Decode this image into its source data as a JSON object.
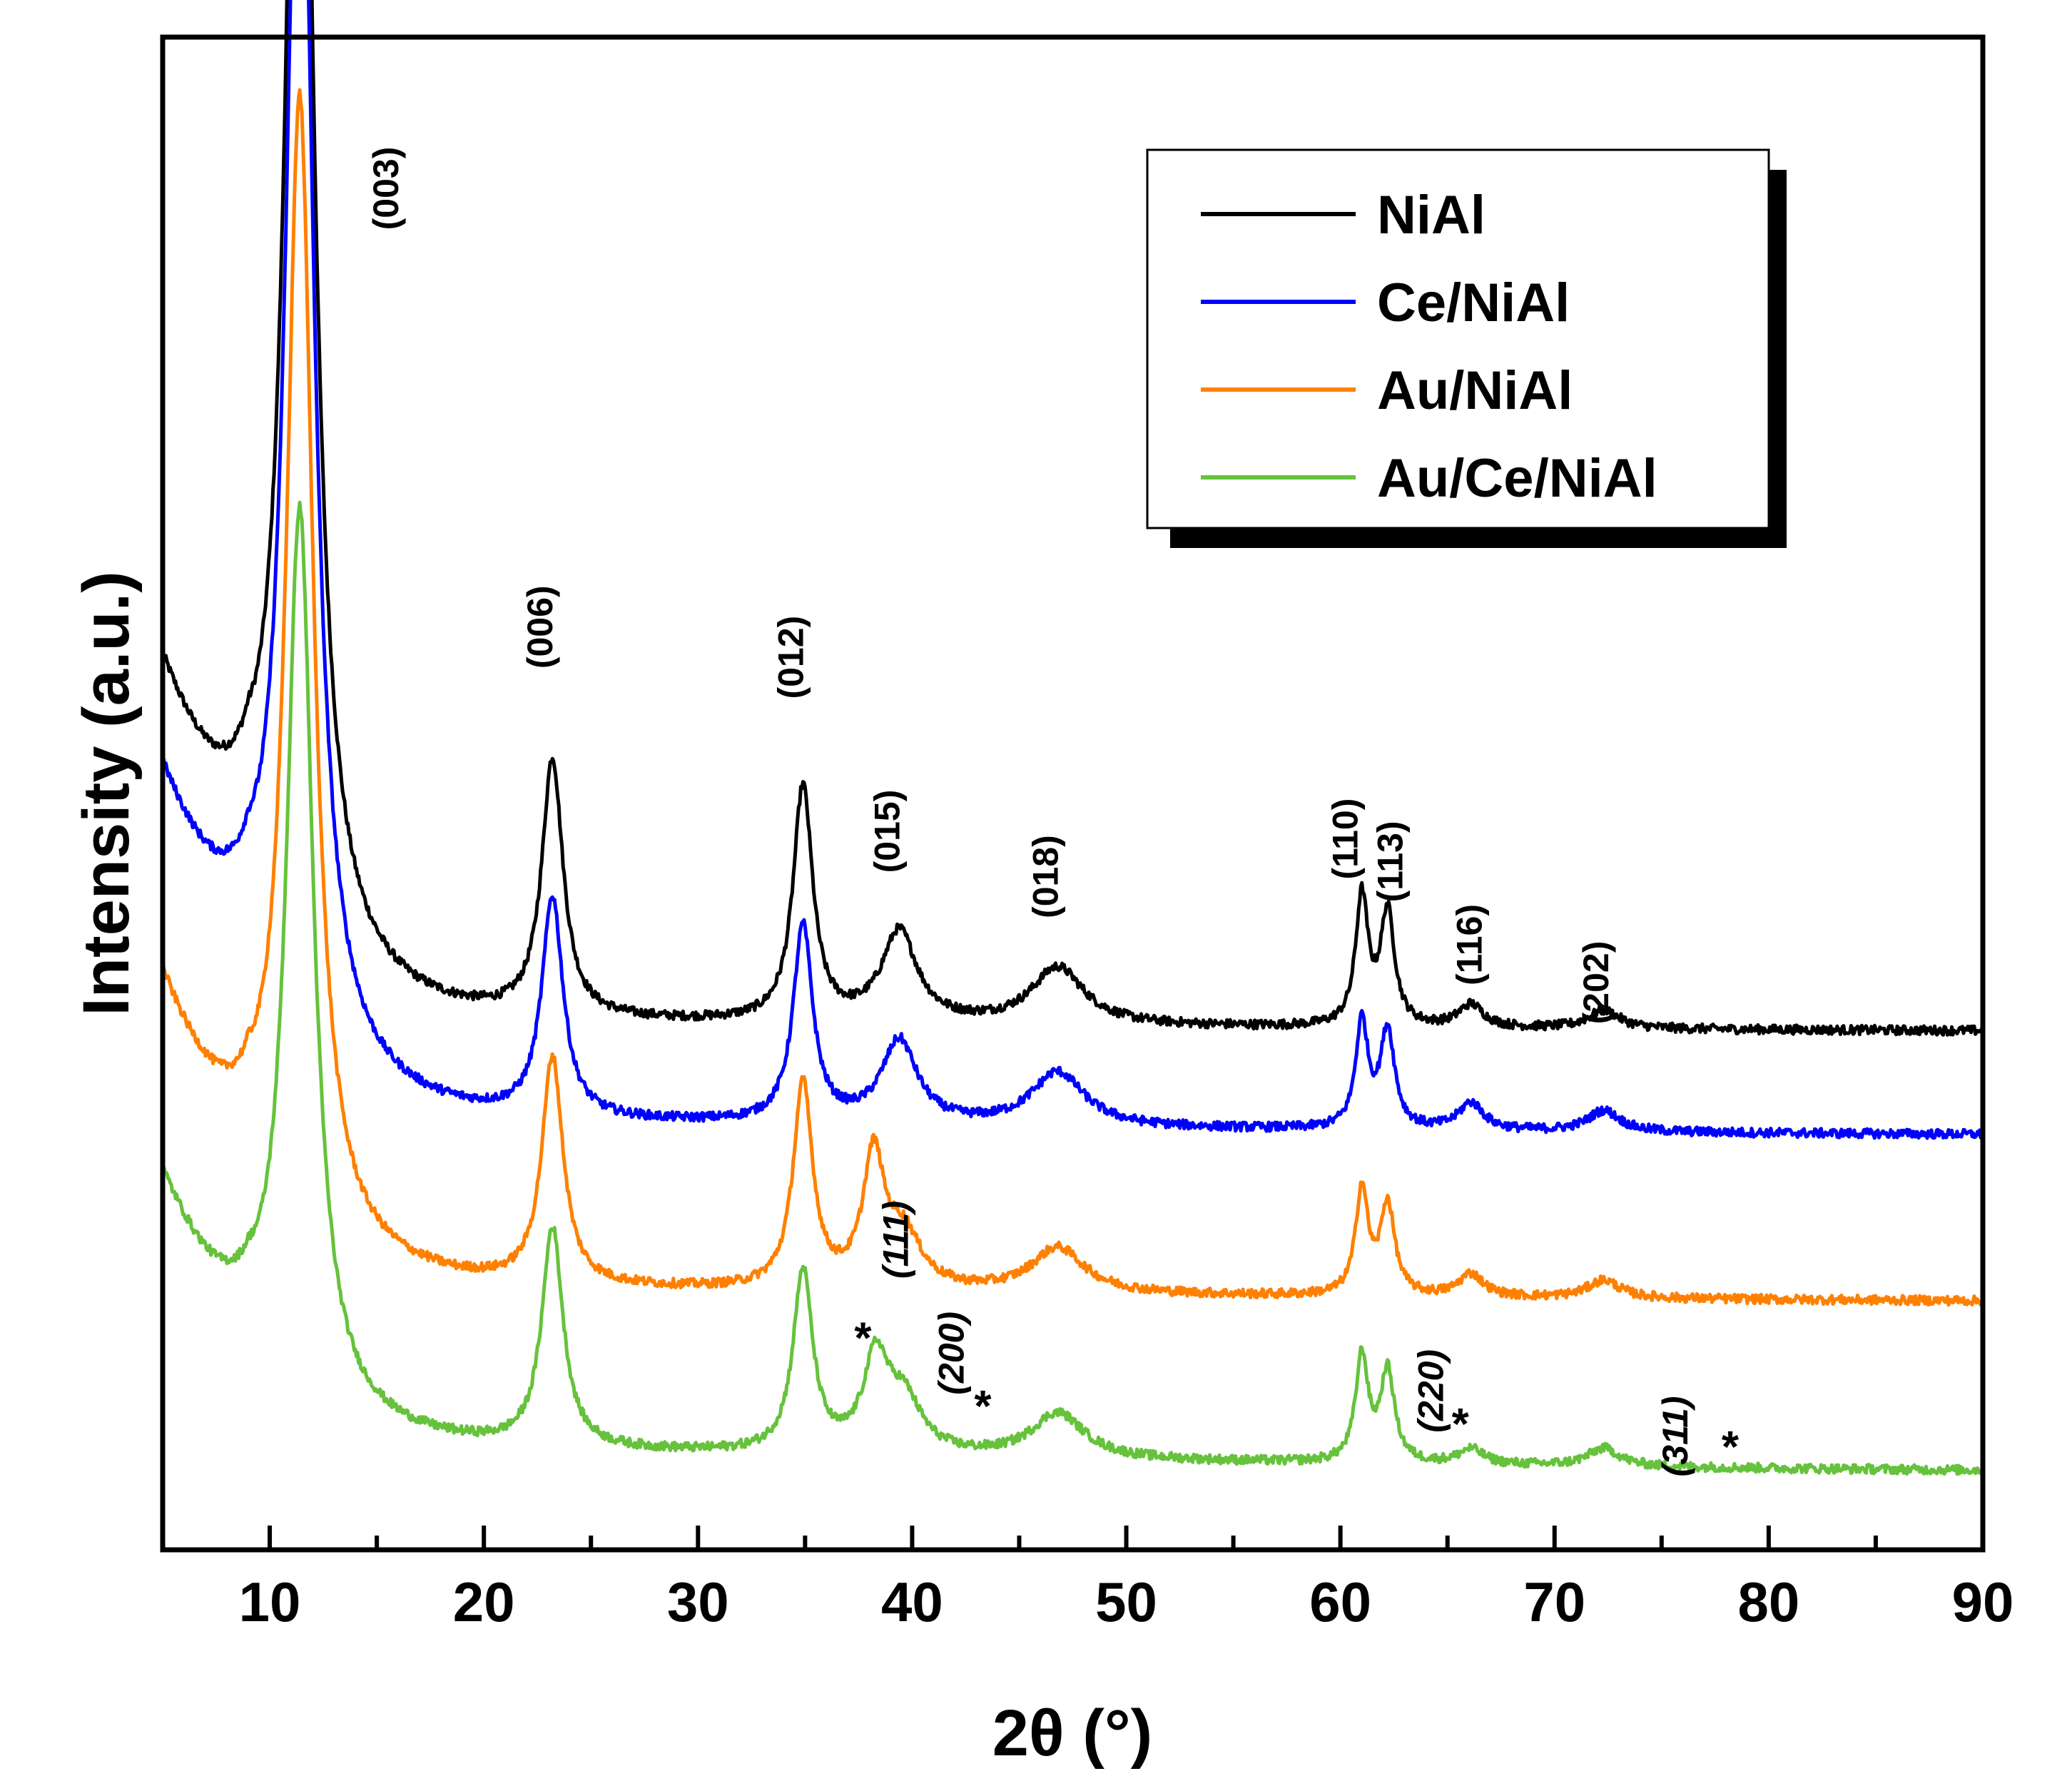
{
  "chart_data": {
    "type": "line",
    "title": "",
    "xlabel": "2θ (°)",
    "ylabel": "Intensity (a.u.)",
    "xlim": [
      5,
      90
    ],
    "ylim": [
      0,
      100
    ],
    "x_ticks": [
      10,
      20,
      30,
      40,
      50,
      60,
      70,
      80,
      90
    ],
    "y_ticks": [],
    "legend_position": "top-right",
    "series": [
      {
        "name": "NiAl",
        "color": "#000000",
        "baseline_start": 58.0,
        "baseline_mid": 35.0,
        "baseline_end": 34.0,
        "dip_9": 47.5,
        "peaks": [
          {
            "x": 11.4,
            "height": 98.5,
            "width": 0.75
          },
          {
            "x": 23.2,
            "height": 17.0,
            "width": 0.6
          },
          {
            "x": 34.9,
            "height": 15.5,
            "width": 0.55
          },
          {
            "x": 39.4,
            "height": 6.0,
            "width": 1.0
          },
          {
            "x": 46.8,
            "height": 3.8,
            "width": 1.5
          },
          {
            "x": 61.0,
            "height": 8.5,
            "width": 0.35
          },
          {
            "x": 62.2,
            "height": 7.5,
            "width": 0.4
          },
          {
            "x": 66.1,
            "height": 1.5,
            "width": 0.7
          },
          {
            "x": 72.3,
            "height": 1.2,
            "width": 0.9
          }
        ]
      },
      {
        "name": "Ce/NiAl",
        "color": "#0000ff",
        "baseline_start": 51.0,
        "baseline_mid": 28.5,
        "baseline_end": 27.0,
        "dip_9": 41.0,
        "peaks": [
          {
            "x": 11.4,
            "height": 90.0,
            "width": 0.75
          },
          {
            "x": 23.2,
            "height": 14.5,
            "width": 0.6
          },
          {
            "x": 34.9,
            "height": 13.0,
            "width": 0.55
          },
          {
            "x": 39.4,
            "height": 5.5,
            "width": 1.0
          },
          {
            "x": 46.8,
            "height": 3.6,
            "width": 1.5
          },
          {
            "x": 61.0,
            "height": 7.0,
            "width": 0.35
          },
          {
            "x": 62.2,
            "height": 6.5,
            "width": 0.4
          },
          {
            "x": 66.1,
            "height": 1.8,
            "width": 0.7
          },
          {
            "x": 72.3,
            "height": 1.4,
            "width": 0.9
          }
        ]
      },
      {
        "name": "Au/NiAl",
        "color": "#ff8000",
        "baseline_start": 37.5,
        "baseline_mid": 17.5,
        "baseline_end": 16.0,
        "dip_9": 27.5,
        "peaks": [
          {
            "x": 11.4,
            "height": 74.0,
            "width": 0.75
          },
          {
            "x": 23.2,
            "height": 15.0,
            "width": 0.6
          },
          {
            "x": 34.9,
            "height": 13.5,
            "width": 0.55
          },
          {
            "x": 38.2,
            "height": 8.5,
            "width": 0.6
          },
          {
            "x": 39.6,
            "height": 3.5,
            "width": 1.0
          },
          {
            "x": 46.8,
            "height": 3.0,
            "width": 1.5
          },
          {
            "x": 61.0,
            "height": 7.0,
            "width": 0.35
          },
          {
            "x": 62.2,
            "height": 6.0,
            "width": 0.4
          },
          {
            "x": 66.1,
            "height": 1.5,
            "width": 0.7
          },
          {
            "x": 72.3,
            "height": 1.2,
            "width": 0.9
          }
        ]
      },
      {
        "name": "Au/Ce/NiAl",
        "color": "#66c23c",
        "baseline_start": 24.5,
        "baseline_mid": 7.0,
        "baseline_end": 4.5,
        "dip_9": 15.5,
        "peaks": [
          {
            "x": 11.4,
            "height": 58.0,
            "width": 0.75
          },
          {
            "x": 23.2,
            "height": 14.5,
            "width": 0.6
          },
          {
            "x": 34.9,
            "height": 12.0,
            "width": 0.55
          },
          {
            "x": 38.3,
            "height": 6.0,
            "width": 0.7
          },
          {
            "x": 39.6,
            "height": 3.5,
            "width": 1.0
          },
          {
            "x": 46.8,
            "height": 3.0,
            "width": 1.5
          },
          {
            "x": 61.0,
            "height": 7.0,
            "width": 0.35
          },
          {
            "x": 62.2,
            "height": 6.0,
            "width": 0.4
          },
          {
            "x": 66.1,
            "height": 1.0,
            "width": 0.7
          },
          {
            "x": 72.3,
            "height": 1.2,
            "width": 0.9
          }
        ]
      }
    ],
    "annotations": [
      {
        "label": "(003)",
        "x": 16.0,
        "y": 90.0,
        "style": "bold",
        "rotated": true
      },
      {
        "label": "(006)",
        "x": 23.2,
        "y": 61.0,
        "style": "bold",
        "rotated": true
      },
      {
        "label": "(012)",
        "x": 34.9,
        "y": 59.0,
        "style": "bold",
        "rotated": true
      },
      {
        "label": "(015)",
        "x": 39.4,
        "y": 47.5,
        "style": "bold",
        "rotated": true
      },
      {
        "label": "(018)",
        "x": 46.8,
        "y": 44.5,
        "style": "bold",
        "rotated": true
      },
      {
        "label": "(110)",
        "x": 60.8,
        "y": 47.0,
        "style": "bold",
        "rotated": true
      },
      {
        "label": "(113)",
        "x": 62.9,
        "y": 45.5,
        "style": "bold",
        "rotated": true
      },
      {
        "label": "(116)",
        "x": 66.6,
        "y": 40.0,
        "style": "bold",
        "rotated": true
      },
      {
        "label": "(202)",
        "x": 72.5,
        "y": 37.5,
        "style": "bold",
        "rotated": true
      },
      {
        "label": "(111)",
        "x": 39.8,
        "y": 20.5,
        "style": "italic",
        "rotated": true
      },
      {
        "label": "(200)",
        "x": 42.4,
        "y": 13.0,
        "style": "italic",
        "rotated": true
      },
      {
        "label": "(220)",
        "x": 64.8,
        "y": 10.5,
        "style": "italic",
        "rotated": true
      },
      {
        "label": "(311)",
        "x": 76.2,
        "y": 7.5,
        "style": "italic",
        "rotated": true
      },
      {
        "label": "*",
        "x": 37.7,
        "y": 13.0,
        "style": "star",
        "rotated": false
      },
      {
        "label": "*",
        "x": 43.3,
        "y": 8.5,
        "style": "star",
        "rotated": false
      },
      {
        "label": "*",
        "x": 65.6,
        "y": 7.3,
        "style": "star",
        "rotated": false
      },
      {
        "label": "*",
        "x": 78.2,
        "y": 5.8,
        "style": "star",
        "rotated": false
      }
    ]
  }
}
